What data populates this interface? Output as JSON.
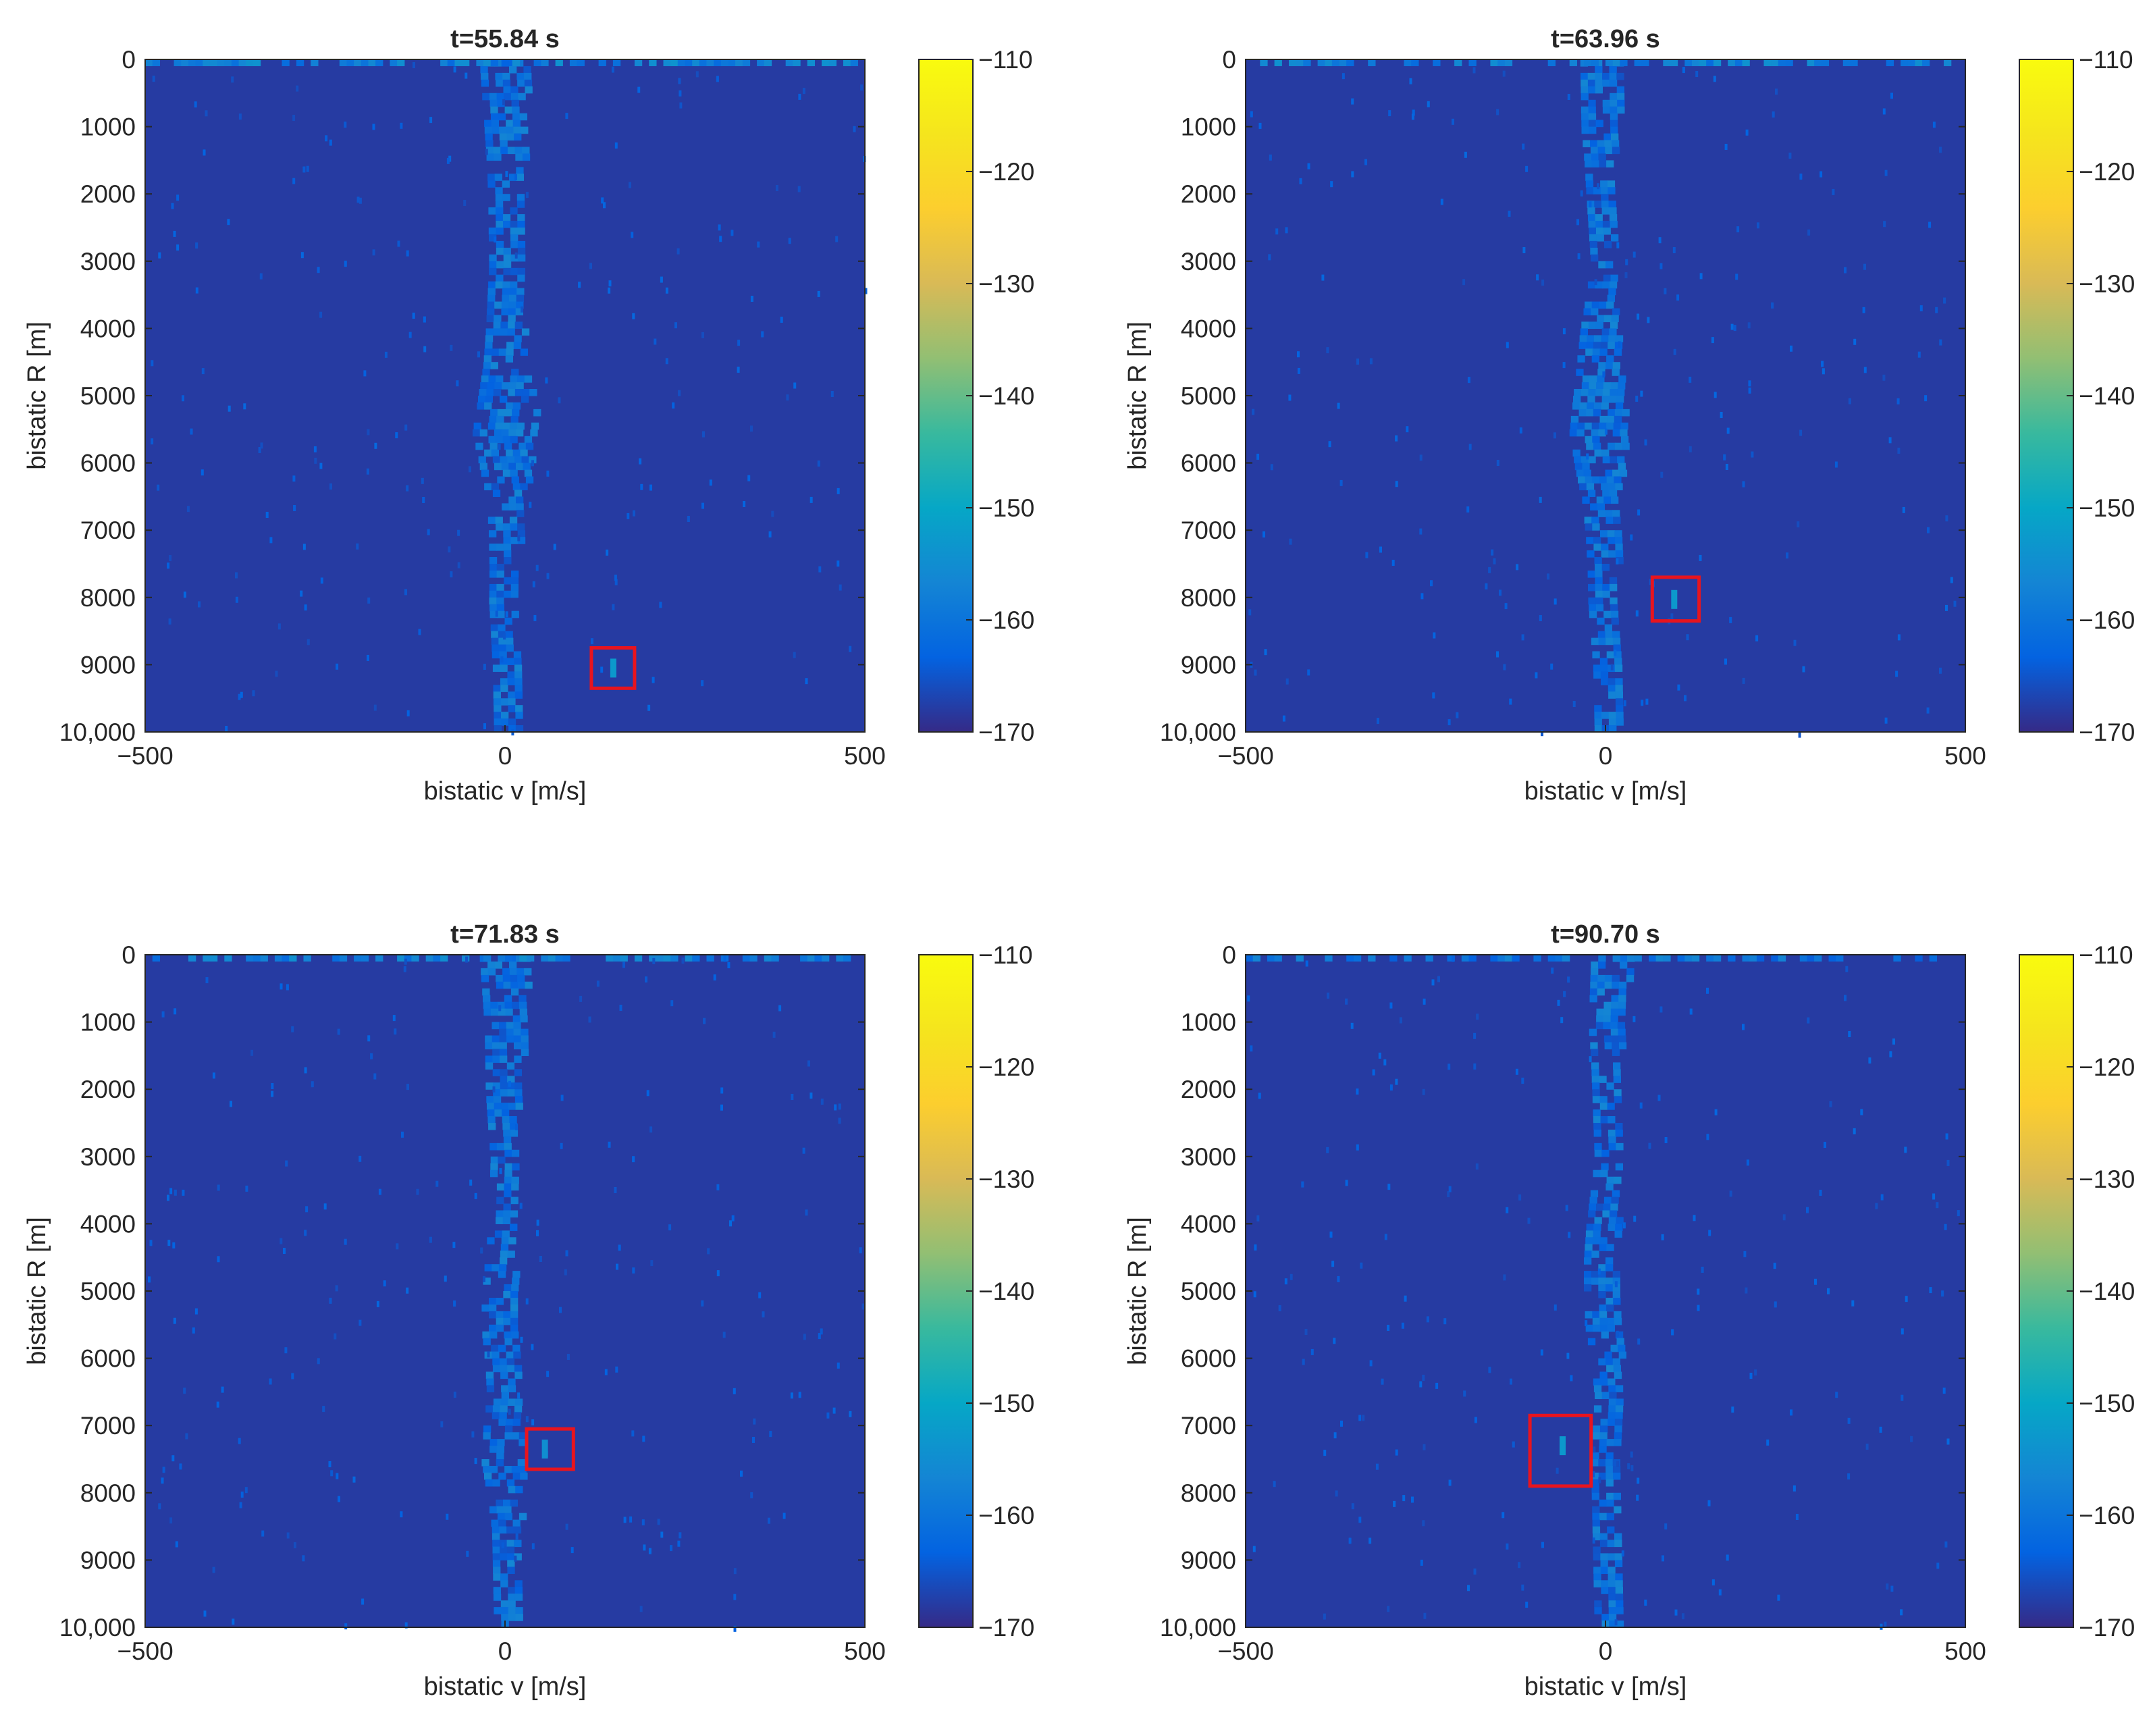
{
  "figure": {
    "colors": {
      "background": "#352a87",
      "marker_box": "#e8141e"
    },
    "colormap": "parula"
  },
  "chart_data": [
    {
      "type": "heatmap",
      "title": "t=55.84 s",
      "xlabel": "bistatic v [m/s]",
      "ylabel": "bistatic R [m]",
      "xlim": [
        -500,
        500
      ],
      "ylim": [
        10000,
        0
      ],
      "x_ticks": [
        -500,
        0,
        500
      ],
      "x_tick_labels": [
        "−500",
        "0",
        "500"
      ],
      "y_ticks": [
        0,
        1000,
        2000,
        3000,
        4000,
        5000,
        6000,
        7000,
        8000,
        9000,
        10000
      ],
      "y_tick_labels": [
        "0",
        "1000",
        "2000",
        "3000",
        "4000",
        "5000",
        "6000",
        "7000",
        "8000",
        "9000",
        "10,000"
      ],
      "colorbar": {
        "range": [
          -170,
          -110
        ],
        "ticks": [
          -110,
          -120,
          -130,
          -140,
          -150,
          -160,
          -170
        ],
        "tick_labels": [
          "−110",
          "−120",
          "−130",
          "−140",
          "−150",
          "−160",
          "−170"
        ]
      },
      "background_level": -168,
      "clutter_ridge": {
        "v_center": [
          [
            0,
            0
          ],
          [
            1000,
            0
          ],
          [
            2000,
            0
          ],
          [
            3000,
            -2
          ],
          [
            4000,
            0
          ],
          [
            5000,
            0
          ],
          [
            6000,
            0
          ],
          [
            7000,
            0
          ],
          [
            8000,
            -3
          ],
          [
            9000,
            0
          ],
          [
            10000,
            0
          ]
        ],
        "half_width": [
          [
            0,
            35
          ],
          [
            1500,
            25
          ],
          [
            3000,
            20
          ],
          [
            4500,
            30
          ],
          [
            5500,
            45
          ],
          [
            6500,
            25
          ],
          [
            7500,
            20
          ],
          [
            8500,
            18
          ],
          [
            10000,
            15
          ]
        ],
        "level": -160
      },
      "near_range_band": {
        "r_max": 100,
        "level": -158
      },
      "target": {
        "v": 150,
        "r": 9050,
        "level": -153
      },
      "marker_box": {
        "v_range": [
          120,
          180
        ],
        "r_range": [
          8750,
          9350
        ]
      }
    },
    {
      "type": "heatmap",
      "title": "t=63.96 s",
      "xlabel": "bistatic v [m/s]",
      "ylabel": "bistatic R [m]",
      "xlim": [
        -500,
        500
      ],
      "ylim": [
        10000,
        0
      ],
      "x_ticks": [
        -500,
        0,
        500
      ],
      "x_tick_labels": [
        "−500",
        "0",
        "500"
      ],
      "y_ticks": [
        0,
        1000,
        2000,
        3000,
        4000,
        5000,
        6000,
        7000,
        8000,
        9000,
        10000
      ],
      "y_tick_labels": [
        "0",
        "1000",
        "2000",
        "3000",
        "4000",
        "5000",
        "6000",
        "7000",
        "8000",
        "9000",
        "10,000"
      ],
      "colorbar": {
        "range": [
          -170,
          -110
        ],
        "ticks": [
          -110,
          -120,
          -130,
          -140,
          -150,
          -160,
          -170
        ],
        "tick_labels": [
          "−110",
          "−120",
          "−130",
          "−140",
          "−150",
          "−160",
          "−170"
        ]
      },
      "background_level": -168,
      "clutter_ridge": {
        "v_center": [
          [
            0,
            -5
          ],
          [
            1000,
            -10
          ],
          [
            2000,
            -8
          ],
          [
            3000,
            -5
          ],
          [
            4000,
            -10
          ],
          [
            5000,
            -10
          ],
          [
            6000,
            -10
          ],
          [
            7000,
            -5
          ],
          [
            8000,
            -5
          ],
          [
            9000,
            0
          ],
          [
            10000,
            0
          ]
        ],
        "half_width": [
          [
            0,
            30
          ],
          [
            1500,
            20
          ],
          [
            3000,
            15
          ],
          [
            4500,
            30
          ],
          [
            5500,
            40
          ],
          [
            6500,
            25
          ],
          [
            7500,
            20
          ],
          [
            8500,
            18
          ],
          [
            10000,
            15
          ]
        ],
        "level": -160
      },
      "near_range_band": {
        "r_max": 100,
        "level": -158
      },
      "target": {
        "v": 95,
        "r": 8030,
        "level": -153
      },
      "marker_box": {
        "v_range": [
          65,
          130
        ],
        "r_range": [
          7700,
          8350
        ]
      }
    },
    {
      "type": "heatmap",
      "title": "t=71.83 s",
      "xlabel": "bistatic v [m/s]",
      "ylabel": "bistatic R [m]",
      "xlim": [
        -500,
        500
      ],
      "ylim": [
        10000,
        0
      ],
      "x_ticks": [
        -500,
        0,
        500
      ],
      "x_tick_labels": [
        "−500",
        "0",
        "500"
      ],
      "y_ticks": [
        0,
        1000,
        2000,
        3000,
        4000,
        5000,
        6000,
        7000,
        8000,
        9000,
        10000
      ],
      "y_tick_labels": [
        "0",
        "1000",
        "2000",
        "3000",
        "4000",
        "5000",
        "6000",
        "7000",
        "8000",
        "9000",
        "10,000"
      ],
      "colorbar": {
        "range": [
          -170,
          -110
        ],
        "ticks": [
          -110,
          -120,
          -130,
          -140,
          -150,
          -160,
          -170
        ],
        "tick_labels": [
          "−110",
          "−120",
          "−130",
          "−140",
          "−150",
          "−160",
          "−170"
        ]
      },
      "background_level": -168,
      "clutter_ridge": {
        "v_center": [
          [
            0,
            0
          ],
          [
            1000,
            0
          ],
          [
            2000,
            -5
          ],
          [
            3000,
            -5
          ],
          [
            4000,
            -5
          ],
          [
            5000,
            -10
          ],
          [
            6000,
            -5
          ],
          [
            7000,
            -5
          ],
          [
            8000,
            0
          ],
          [
            9000,
            0
          ],
          [
            10000,
            0
          ]
        ],
        "half_width": [
          [
            0,
            35
          ],
          [
            1500,
            25
          ],
          [
            3000,
            15
          ],
          [
            4500,
            20
          ],
          [
            5500,
            25
          ],
          [
            6500,
            20
          ],
          [
            7500,
            30
          ],
          [
            8500,
            18
          ],
          [
            10000,
            15
          ]
        ],
        "level": -160
      },
      "near_range_band": {
        "r_max": 100,
        "level": -158
      },
      "target": {
        "v": 55,
        "r": 7350,
        "level": -155
      },
      "marker_box": {
        "v_range": [
          30,
          95
        ],
        "r_range": [
          7050,
          7650
        ]
      }
    },
    {
      "type": "heatmap",
      "title": "t=90.70 s",
      "xlabel": "bistatic v [m/s]",
      "ylabel": "bistatic R [m]",
      "xlim": [
        -500,
        500
      ],
      "ylim": [
        10000,
        0
      ],
      "x_ticks": [
        -500,
        0,
        500
      ],
      "x_tick_labels": [
        "−500",
        "0",
        "500"
      ],
      "y_ticks": [
        0,
        1000,
        2000,
        3000,
        4000,
        5000,
        6000,
        7000,
        8000,
        9000,
        10000
      ],
      "y_tick_labels": [
        "0",
        "1000",
        "2000",
        "3000",
        "4000",
        "5000",
        "6000",
        "7000",
        "8000",
        "9000",
        "10,000"
      ],
      "colorbar": {
        "range": [
          -170,
          -110
        ],
        "ticks": [
          -110,
          -120,
          -130,
          -140,
          -150,
          -160,
          -170
        ],
        "tick_labels": [
          "−110",
          "−120",
          "−130",
          "−140",
          "−150",
          "−160",
          "−170"
        ]
      },
      "background_level": -168,
      "clutter_ridge": {
        "v_center": [
          [
            0,
            10
          ],
          [
            1000,
            0
          ],
          [
            2000,
            0
          ],
          [
            3000,
            0
          ],
          [
            4000,
            -5
          ],
          [
            5000,
            -5
          ],
          [
            6000,
            0
          ],
          [
            7000,
            0
          ],
          [
            8000,
            0
          ],
          [
            9000,
            0
          ],
          [
            10000,
            0
          ]
        ],
        "half_width": [
          [
            0,
            30
          ],
          [
            1500,
            20
          ],
          [
            3000,
            15
          ],
          [
            4500,
            25
          ],
          [
            5500,
            25
          ],
          [
            6500,
            15
          ],
          [
            7500,
            20
          ],
          [
            8500,
            18
          ],
          [
            10000,
            15
          ]
        ],
        "level": -160
      },
      "near_range_band": {
        "r_max": 100,
        "level": -160
      },
      "target": {
        "v": -60,
        "r": 7300,
        "level": -153
      },
      "marker_box": {
        "v_range": [
          -105,
          -20
        ],
        "r_range": [
          6850,
          7900
        ]
      }
    }
  ]
}
